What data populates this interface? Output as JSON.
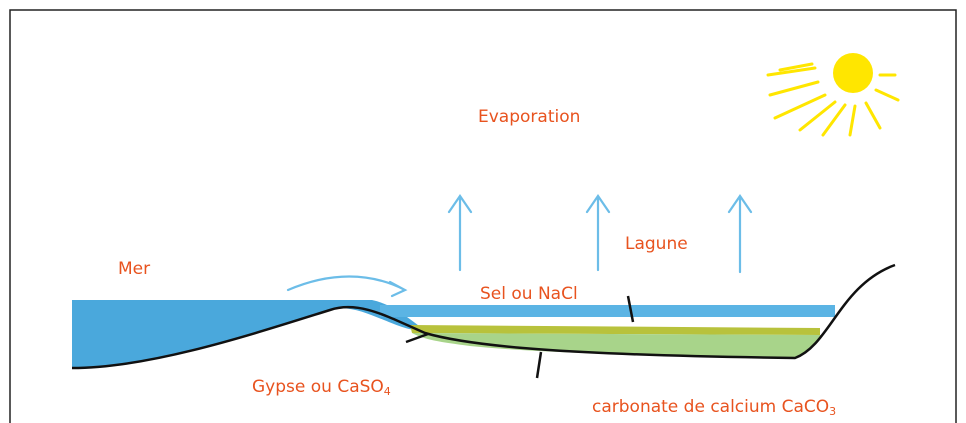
{
  "labels": {
    "evaporation": "Evaporation",
    "mer": "Mer",
    "lagune": "Lagune",
    "sel": "Sel ou NaCl",
    "gypse": {
      "text": "Gypse ou CaSO",
      "subscript": "4"
    },
    "carbonate": {
      "text": "carbonate de calcium CaCO",
      "subscript": "3"
    }
  }
}
